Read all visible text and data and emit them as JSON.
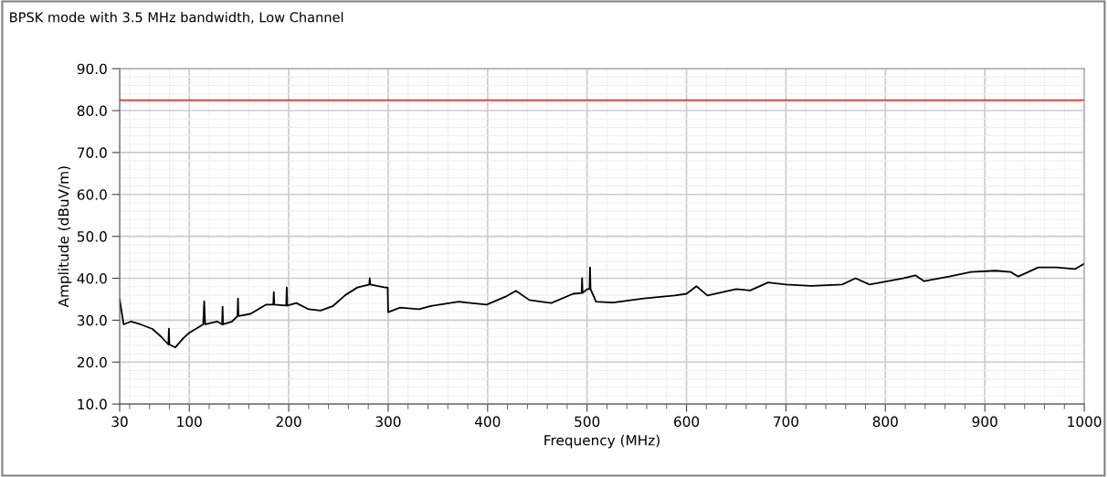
{
  "chart_data": {
    "type": "line",
    "title": "BPSK mode with 3.5 MHz bandwidth, Low Channel",
    "xlabel": "Frequency (MHz)",
    "ylabel": "Amplitude (dBuV/m)",
    "x": [
      30,
      34,
      41.5,
      51,
      63,
      72,
      79,
      79.5,
      80,
      86,
      94,
      100,
      114,
      115,
      116,
      128,
      133,
      133.5,
      134,
      143,
      148.5,
      149,
      149.5,
      161.5,
      177,
      184.5,
      185,
      185.5,
      197.5,
      198,
      198.5,
      207.7,
      220,
      232,
      244.6,
      257,
      269,
      281,
      281.5,
      282,
      297,
      299.5,
      300,
      312,
      331,
      343,
      371,
      399,
      418,
      428.5,
      442,
      464,
      486,
      494.5,
      495,
      495.5,
      500,
      502.5,
      503,
      503.5,
      509,
      526,
      557,
      588,
      600,
      610,
      621,
      650,
      664,
      682,
      700,
      725.6,
      756.5,
      770,
      784,
      817.6,
      830,
      839,
      864,
      886,
      910.5,
      926,
      933.6,
      953.7,
      972,
      990.6,
      1000
    ],
    "series": [
      {
        "color": "#000000",
        "values": [
          34.9,
          29,
          29.7,
          29,
          27.9,
          26,
          24.2,
          28,
          24.2,
          23.5,
          25.7,
          27,
          29,
          34.5,
          29,
          29.7,
          29,
          33.2,
          29,
          29.7,
          31,
          35.2,
          31,
          31.5,
          33.7,
          33.7,
          36.7,
          33.7,
          33.5,
          37.8,
          33.5,
          34.1,
          32.6,
          32.3,
          33.4,
          36,
          37.8,
          38.5,
          40,
          38.5,
          37.8,
          37.8,
          31.9,
          33,
          32.6,
          33.4,
          34.4,
          33.7,
          35.6,
          37,
          34.8,
          34.1,
          36.3,
          36.5,
          40,
          36.5,
          37.4,
          37.4,
          42.6,
          37.4,
          34.4,
          34.2,
          35.2,
          35.9,
          36.3,
          38.1,
          35.9,
          37.4,
          37.1,
          39,
          38.5,
          38.2,
          38.5,
          40,
          38.5,
          40,
          40.7,
          39.3,
          40.4,
          41.5,
          41.8,
          41.5,
          40.4,
          42.6,
          42.6,
          42.2,
          43.5
        ]
      }
    ],
    "xlim": [
      30,
      1000
    ],
    "xticks": [
      30,
      100,
      200,
      300,
      400,
      500,
      600,
      700,
      800,
      900,
      1000
    ],
    "ylim": [
      10,
      90
    ],
    "yticks": [
      {
        "value": 10,
        "label": "10.0"
      },
      {
        "value": 20,
        "label": "20.0"
      },
      {
        "value": 30,
        "label": "30.0"
      },
      {
        "value": 40,
        "label": "40.0"
      },
      {
        "value": 50,
        "label": "50.0"
      },
      {
        "value": 60,
        "label": "60.0"
      },
      {
        "value": 70,
        "label": "70.0"
      },
      {
        "value": 80,
        "label": "80.0"
      },
      {
        "value": 90,
        "label": "90.0"
      }
    ],
    "ref_lines": [
      {
        "axis": "y",
        "value": 82.5,
        "label": null,
        "color": "#e8302a"
      }
    ],
    "grid": true
  }
}
